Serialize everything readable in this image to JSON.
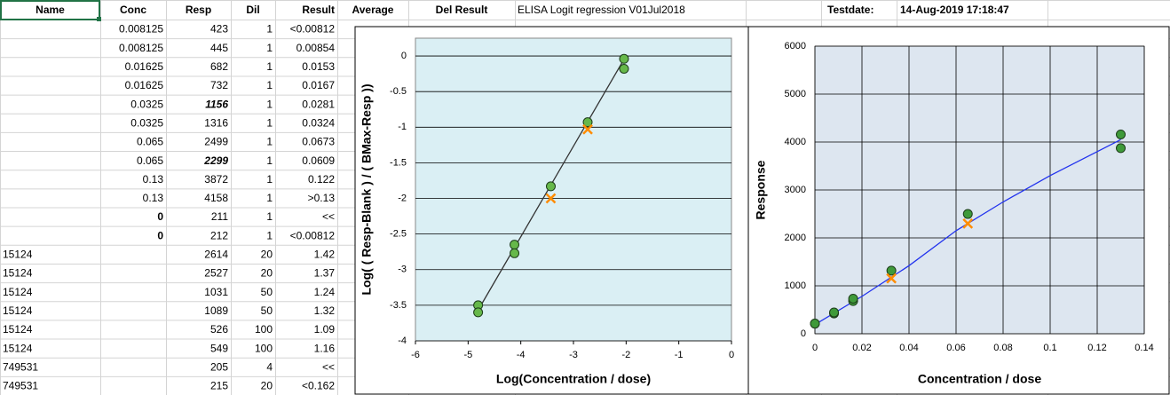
{
  "header": {
    "columns": [
      "Name",
      "Conc",
      "Resp",
      "Dil",
      "Result",
      "Average",
      "Del Result"
    ],
    "title": "ELISA Logit regression V01Jul2018",
    "testdate_label": "Testdate:",
    "testdate": "14-Aug-2019 17:18:47"
  },
  "table": {
    "rows": [
      [
        "",
        "0.008125",
        "423",
        "1",
        "<0.00812"
      ],
      [
        "",
        "0.008125",
        "445",
        "1",
        "0.00854"
      ],
      [
        "",
        "0.01625",
        "682",
        "1",
        "0.0153"
      ],
      [
        "",
        "0.01625",
        "732",
        "1",
        "0.0167"
      ],
      [
        "",
        "0.0325",
        "1156",
        "1",
        "0.0281"
      ],
      [
        "",
        "0.0325",
        "1316",
        "1",
        "0.0324"
      ],
      [
        "",
        "0.065",
        "2499",
        "1",
        "0.0673"
      ],
      [
        "",
        "0.065",
        "2299",
        "1",
        "0.0609"
      ],
      [
        "",
        "0.13",
        "3872",
        "1",
        "0.122"
      ],
      [
        "",
        "0.13",
        "4158",
        "1",
        ">0.13"
      ],
      [
        "",
        "0",
        "211",
        "1",
        "<<"
      ],
      [
        "",
        "0",
        "212",
        "1",
        "<0.00812"
      ],
      [
        "15124",
        "",
        "2614",
        "20",
        "1.42"
      ],
      [
        "15124",
        "",
        "2527",
        "20",
        "1.37"
      ],
      [
        "15124",
        "",
        "1031",
        "50",
        "1.24"
      ],
      [
        "15124",
        "",
        "1089",
        "50",
        "1.32"
      ],
      [
        "15124",
        "",
        "526",
        "100",
        "1.09"
      ],
      [
        "15124",
        "",
        "549",
        "100",
        "1.16"
      ],
      [
        "749531",
        "",
        "205",
        "4",
        "<<"
      ],
      [
        "749531",
        "",
        "215",
        "20",
        "<0.162"
      ]
    ],
    "bold_italic": [
      [
        4,
        2
      ],
      [
        7,
        2
      ]
    ],
    "bold": [
      [
        10,
        1
      ],
      [
        11,
        1
      ]
    ]
  },
  "chart_data": [
    {
      "type": "scatter",
      "x_label": "Log(Concentration / dose)",
      "y_label": "Log( ( Resp-Blank ) / ( BMax-Resp ))",
      "xlim": [
        -6,
        0
      ],
      "ylim": [
        -4,
        0.25
      ],
      "xticks": [
        -6,
        -5,
        -4,
        -3,
        -2,
        -1,
        0
      ],
      "yticks": [
        0,
        -0.5,
        -1,
        -1.5,
        -2,
        -2.5,
        -3,
        -3.5,
        -4
      ],
      "plot_color": "#daeff4",
      "xgrid": false,
      "ygrid": true,
      "series": [
        {
          "mark": "line",
          "color": "#333333",
          "x": [
            -4.85,
            -2.02
          ],
          "values": [
            -3.62,
            -0.02
          ]
        },
        {
          "mark": "circle",
          "color": "#66b84a",
          "x": [
            -4.81,
            -4.81,
            -4.12,
            -4.12,
            -3.43,
            -2.73,
            -2.04,
            -2.04
          ],
          "values": [
            -3.5,
            -3.6,
            -2.65,
            -2.77,
            -1.83,
            -0.93,
            -0.04,
            -0.18
          ]
        },
        {
          "mark": "cross",
          "color": "#ff8c00",
          "x": [
            -3.43,
            -2.73
          ],
          "values": [
            -2.0,
            -1.03
          ]
        }
      ]
    },
    {
      "type": "scatter",
      "x_label": "Concentration / dose",
      "y_label": "Response",
      "xlim": [
        0,
        0.14
      ],
      "ylim": [
        0,
        6000
      ],
      "xticks": [
        0,
        0.02,
        0.04,
        0.06,
        0.08,
        0.1,
        0.12,
        0.14
      ],
      "yticks": [
        0,
        1000,
        2000,
        3000,
        4000,
        5000,
        6000
      ],
      "plot_color": "#dde6f0",
      "xgrid": true,
      "ygrid": true,
      "series": [
        {
          "mark": "line",
          "color": "#2233ee",
          "x": [
            0,
            0.02,
            0.04,
            0.06,
            0.08,
            0.1,
            0.12,
            0.13
          ],
          "values": [
            190,
            780,
            1420,
            2150,
            2750,
            3300,
            3800,
            4050
          ]
        },
        {
          "mark": "circle",
          "color": "#3f9a3a",
          "x": [
            0,
            0,
            0.008125,
            0.008125,
            0.01625,
            0.01625,
            0.0325,
            0.065,
            0.13,
            0.13
          ],
          "values": [
            211,
            212,
            423,
            445,
            682,
            732,
            1316,
            2499,
            3872,
            4158
          ]
        },
        {
          "mark": "cross",
          "color": "#ff8c00",
          "x": [
            0.0325,
            0.065
          ],
          "values": [
            1156,
            2299
          ]
        }
      ]
    }
  ]
}
